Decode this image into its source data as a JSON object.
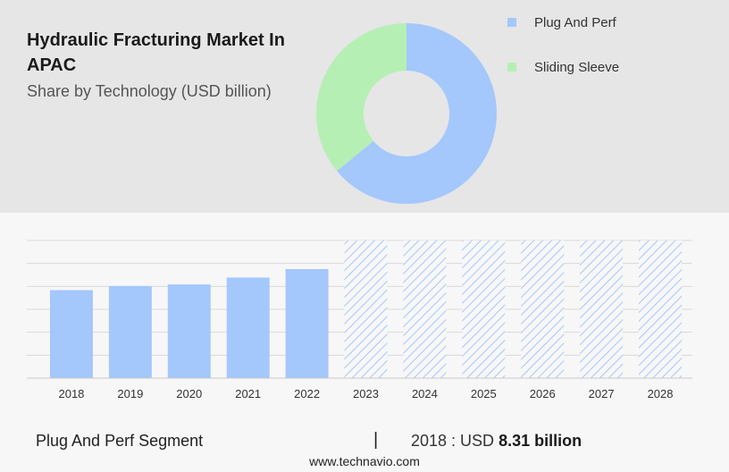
{
  "chart_data": [
    {
      "type": "pie",
      "title": "Hydraulic Fracturing Market In APAC",
      "subtitle": "Share by Technology (USD billion)",
      "legend_position": "top-right",
      "series": [
        {
          "name": "Plug And Perf",
          "value": 64,
          "color": "#a4c7fc"
        },
        {
          "name": "Sliding Sleeve",
          "value": 36,
          "color": "#b5efb4"
        }
      ]
    },
    {
      "type": "bar",
      "categories": [
        "2018",
        "2019",
        "2020",
        "2021",
        "2022",
        "2023",
        "2024",
        "2025",
        "2026",
        "2027",
        "2028"
      ],
      "values": [
        8.31,
        8.7,
        8.85,
        9.5,
        10.3,
        null,
        null,
        null,
        null,
        null,
        null
      ],
      "forecast_from": "2023",
      "ylim": [
        0,
        13.0
      ],
      "grid": true,
      "bar_color": "#a4c7fc",
      "forecast_color": "#a4c7fc"
    }
  ],
  "footer": {
    "segment_label": "Plug And Perf Segment",
    "separator": "|",
    "year_text": "2018 : USD",
    "value_text": "8.31 billion",
    "source": "www.technavio.com"
  }
}
